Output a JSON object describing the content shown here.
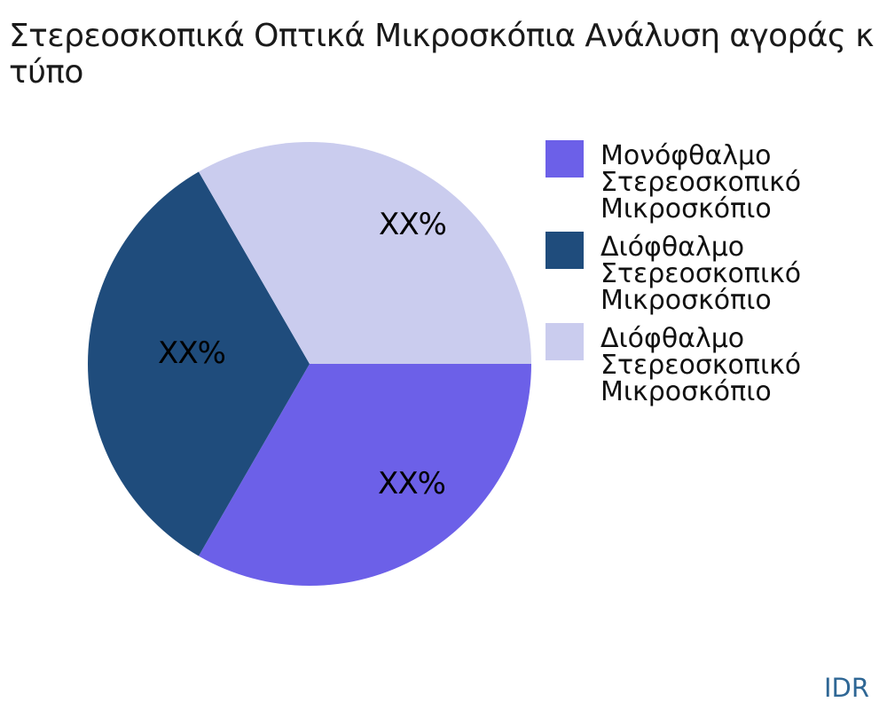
{
  "title": {
    "lines": [
      "Στερεοσκοπικά Οπτικά Μικροσκόπια Ανάλυση αγοράς κ",
      "τύπο"
    ]
  },
  "watermark": {
    "text": "IDR",
    "color": "#2F6795"
  },
  "colors": {
    "background": "#ffffff",
    "title_text": "#1a1a1a",
    "label_text": "#000000"
  },
  "chart_data": {
    "type": "pie",
    "title": "Στερεοσκοπικά Οπτικά Μικροσκόπια Ανάλυση αγοράς κ τύπο",
    "legend_position": "right",
    "value_labels_placeholder": true,
    "slices": [
      {
        "label": "Μονόφθαλμο Στερεοσκοπικό Μικροσκόπιο",
        "display_value": "XX%",
        "value_pct": 33.33,
        "color": "#6C60E8",
        "start_angle_deg": 240,
        "end_angle_deg": 360
      },
      {
        "label": "Διόφθαλμο Στερεοσκοπικό Μικροσκόπιο",
        "display_value": "XX%",
        "value_pct": 33.33,
        "color": "#1F4C7C",
        "start_angle_deg": 120,
        "end_angle_deg": 240
      },
      {
        "label": "Διόφθαλμο Στερεοσκοπικό Μικροσκόπιο",
        "display_value": "XX%",
        "value_pct": 33.33,
        "color": "#CACCEE",
        "start_angle_deg": 0,
        "end_angle_deg": 120
      }
    ]
  }
}
